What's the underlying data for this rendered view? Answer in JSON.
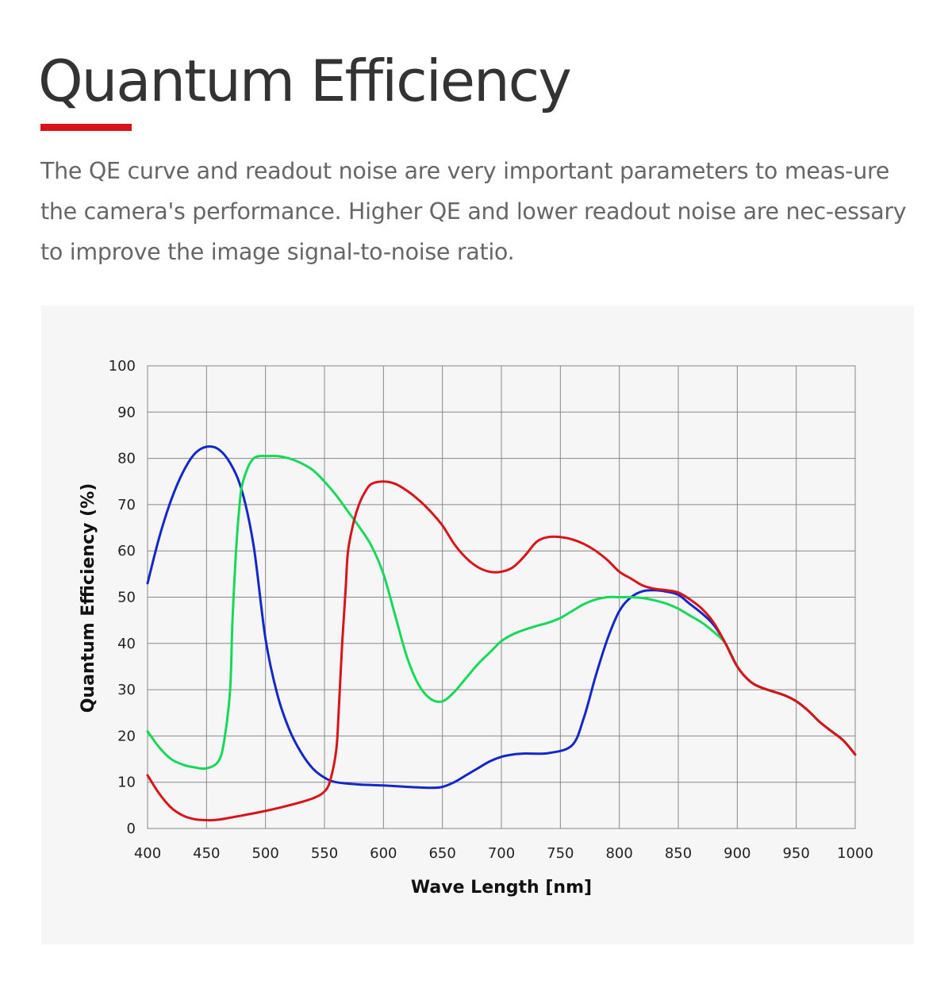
{
  "header": {
    "title": "Quantum Efficiency",
    "description": "The QE curve and readout noise are very important parameters to meas-ure the camera's performance. Higher QE and lower readout noise are nec-essary to improve the image signal-to-noise ratio."
  },
  "colors": {
    "accent": "#d7141a",
    "title_text": "#333333",
    "body_text": "#666666",
    "card_background": "#f6f6f6",
    "grid": "#888888"
  },
  "chart_data": {
    "type": "line",
    "title": "",
    "xlabel": "Wave Length [nm]",
    "ylabel": "Quantum Efficiency (%)",
    "xlim": [
      400,
      1000
    ],
    "ylim": [
      0,
      100
    ],
    "xticks": [
      400,
      450,
      500,
      550,
      600,
      650,
      700,
      750,
      800,
      850,
      900,
      950,
      1000
    ],
    "yticks": [
      0,
      10,
      20,
      30,
      40,
      50,
      60,
      70,
      80,
      90,
      100
    ],
    "grid": true,
    "legend": "none",
    "series": [
      {
        "color": "#1428c8",
        "x": [
          400,
          410,
          420,
          430,
          440,
          450,
          460,
          470,
          480,
          490,
          500,
          510,
          520,
          530,
          540,
          550,
          560,
          580,
          600,
          620,
          640,
          650,
          660,
          670,
          680,
          690,
          700,
          710,
          720,
          740,
          760,
          770,
          780,
          790,
          800,
          810,
          820,
          830,
          840,
          850,
          860,
          870,
          880,
          890,
          900,
          910,
          920,
          940,
          950,
          960,
          970,
          980,
          990,
          1000
        ],
        "y": [
          53,
          63,
          71,
          77,
          81,
          82.5,
          82,
          79,
          73,
          61,
          41,
          29,
          21.5,
          16.5,
          13,
          11,
          10,
          9.5,
          9.3,
          9,
          8.8,
          9,
          10,
          11.5,
          13,
          14.5,
          15.5,
          16,
          16.2,
          16.3,
          18,
          24,
          33,
          41,
          47,
          50,
          51.3,
          51.5,
          51.2,
          50.5,
          48.5,
          46.5,
          44,
          40,
          35,
          32,
          30.5,
          28.8,
          27.5,
          25.5,
          23,
          21,
          19,
          16
        ]
      },
      {
        "color": "#18d85a",
        "x": [
          400,
          410,
          420,
          430,
          440,
          450,
          460,
          465,
          470,
          472,
          475,
          478,
          480,
          485,
          490,
          495,
          500,
          510,
          520,
          530,
          540,
          550,
          560,
          570,
          580,
          590,
          600,
          610,
          620,
          630,
          640,
          650,
          660,
          670,
          680,
          690,
          700,
          710,
          720,
          730,
          740,
          750,
          760,
          770,
          780,
          790,
          800,
          810,
          820,
          830,
          840,
          850,
          860,
          870,
          880,
          890,
          900,
          910,
          920,
          940,
          950,
          960,
          970,
          980,
          990,
          1000
        ],
        "y": [
          21,
          17.5,
          15,
          13.8,
          13.2,
          13,
          14.5,
          19,
          30,
          45,
          60,
          70,
          74,
          78,
          80,
          80.5,
          80.5,
          80.5,
          80,
          79,
          77.5,
          75,
          72,
          68.5,
          65,
          61,
          55,
          46,
          37,
          31,
          28,
          27.5,
          29.5,
          32.5,
          35.5,
          38,
          40.5,
          42,
          43,
          43.8,
          44.5,
          45.5,
          47,
          48.5,
          49.5,
          50,
          50,
          50,
          49.8,
          49.3,
          48.6,
          47.5,
          46,
          44.5,
          42.5,
          40,
          35,
          32,
          30.5,
          28.8,
          27.5,
          25.5,
          23,
          21,
          19,
          16
        ]
      },
      {
        "color": "#d7141a",
        "x": [
          400,
          410,
          420,
          430,
          440,
          450,
          460,
          480,
          500,
          520,
          540,
          550,
          555,
          560,
          562,
          565,
          568,
          570,
          575,
          580,
          585,
          590,
          600,
          610,
          620,
          630,
          640,
          650,
          660,
          670,
          680,
          690,
          700,
          710,
          720,
          730,
          740,
          750,
          760,
          770,
          780,
          790,
          800,
          810,
          820,
          830,
          840,
          850,
          860,
          870,
          880,
          890,
          900,
          910,
          920,
          940,
          950,
          960,
          970,
          980,
          990,
          1000
        ],
        "y": [
          11.5,
          7.5,
          4.5,
          2.8,
          2,
          1.8,
          1.9,
          2.8,
          3.8,
          5,
          6.5,
          8,
          10.5,
          17,
          25,
          40,
          52,
          60,
          66.5,
          70.5,
          73,
          74.5,
          75,
          74.5,
          73,
          71,
          68.5,
          65.5,
          61.5,
          58.5,
          56.5,
          55.5,
          55.5,
          56.5,
          59,
          62,
          63,
          63,
          62.5,
          61.5,
          60,
          58,
          55.5,
          54,
          52.5,
          51.8,
          51.5,
          51,
          49.5,
          47.5,
          44.5,
          40,
          35,
          32,
          30.5,
          28.8,
          27.5,
          25.5,
          23,
          21,
          19,
          16
        ]
      }
    ]
  }
}
